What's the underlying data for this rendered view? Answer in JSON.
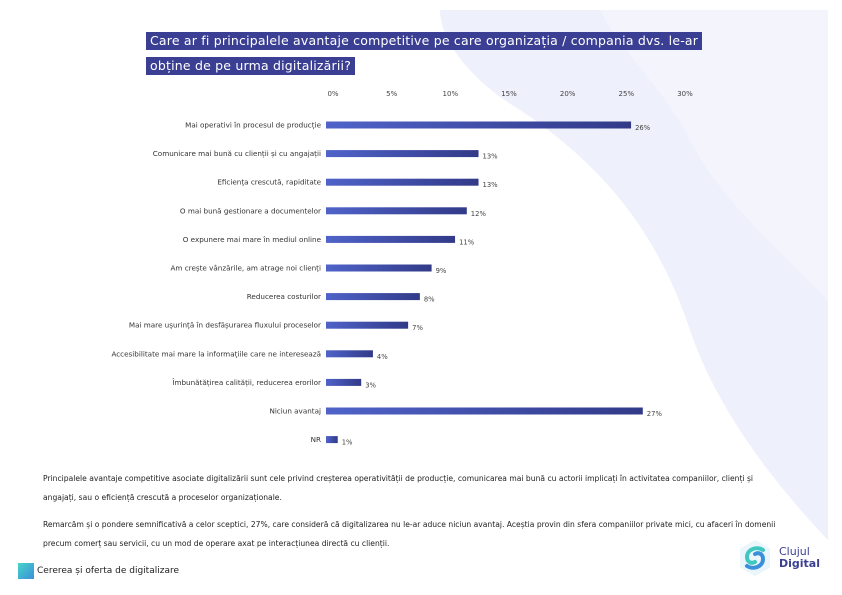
{
  "chart_data": {
    "type": "bar",
    "orientation": "horizontal",
    "title": "Care ar fi principalele avantaje competitive pe care organizația / compania dvs. le-ar obține de pe urma digitalizării?",
    "title_lines": [
      "Care ar fi principalele avantaje competitive pe care organizația / compania dvs. le-ar",
      "obține de pe urma digitalizării?"
    ],
    "categories": [
      "Mai operativi în procesul de producție",
      "Comunicare mai bună cu clienții și cu angajații",
      "Eficiența crescută, rapiditate",
      "O mai bună gestionare a documentelor",
      "O expunere mai mare în mediul online",
      "Am crește vânzările, am atrage noi clienți",
      "Reducerea costurilor",
      "Mai mare ușurință în desfășurarea fluxului proceselor",
      "Accesibilitate mai mare la informațiile care ne interesează",
      "Îmbunătățirea calității, reducerea erorilor",
      "Niciun avantaj",
      "NR"
    ],
    "values": [
      26,
      13,
      13,
      12,
      11,
      9,
      8,
      7,
      4,
      3,
      27,
      1
    ],
    "value_labels": [
      "26%",
      "13%",
      "13%",
      "12%",
      "11%",
      "9%",
      "8%",
      "7%",
      "4%",
      "3%",
      "27%",
      "1%"
    ],
    "xticks": [
      "0%",
      "5%",
      "10%",
      "15%",
      "20%",
      "25%",
      "30%"
    ],
    "xlim": [
      0,
      30
    ],
    "xlabel": "",
    "ylabel": "",
    "grid": false,
    "bar_color_start": "#4f63c9",
    "bar_color_end": "#323a88"
  },
  "text": {
    "paragraph1": "Principalele avantaje competitive asociate digitalizării sunt cele privind creșterea operativității de producție, comunicarea mai bună cu actorii implicați în activitatea companiilor, clienți și angajați, sau o eficiență crescută a proceselor organizaționale.",
    "paragraph2": "Remarcăm și o pondere semnificativă a celor sceptici, 27%, care consideră că digitalizarea nu le-ar aduce niciun avantaj. Aceștia provin din sfera companiilor private mici, cu afaceri în domenii precum comerț sau servicii, cu un mod de operare axat pe interacțiunea directă cu clienții.",
    "footer": "Cererea și oferta de digitalizare"
  },
  "logo": {
    "line1": "Clujul",
    "line2": "Digital"
  },
  "colors": {
    "title_bg": "#3b3f93",
    "background_shape": "#eef0fb"
  }
}
